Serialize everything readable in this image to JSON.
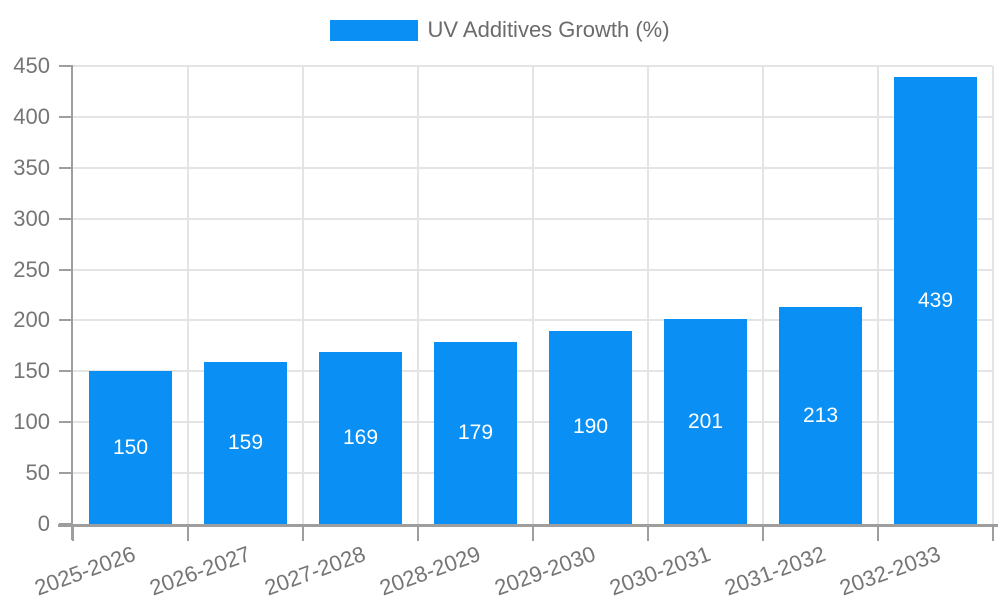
{
  "chart_data": {
    "type": "bar",
    "title": "",
    "legend": {
      "label": "UV Additives Growth (%)",
      "position": "top"
    },
    "categories": [
      "2025-2026",
      "2026-2027",
      "2027-2028",
      "2028-2029",
      "2029-2030",
      "2030-2031",
      "2031-2032",
      "2032-2033"
    ],
    "values": [
      150,
      159,
      169,
      179,
      190,
      201,
      213,
      439
    ],
    "xlabel": "",
    "ylabel": "",
    "ylim": [
      0,
      450
    ],
    "ytick_step": 50,
    "yticks": [
      0,
      50,
      100,
      150,
      200,
      250,
      300,
      350,
      400,
      450
    ],
    "grid": true,
    "bar_color": "#0a90f4",
    "value_label_color": "#ffffff",
    "grid_color": "#e4e4e4",
    "axis_color": "#9e9e9e",
    "tick_label_color": "#757575",
    "x_label_rotation_deg": -20
  }
}
